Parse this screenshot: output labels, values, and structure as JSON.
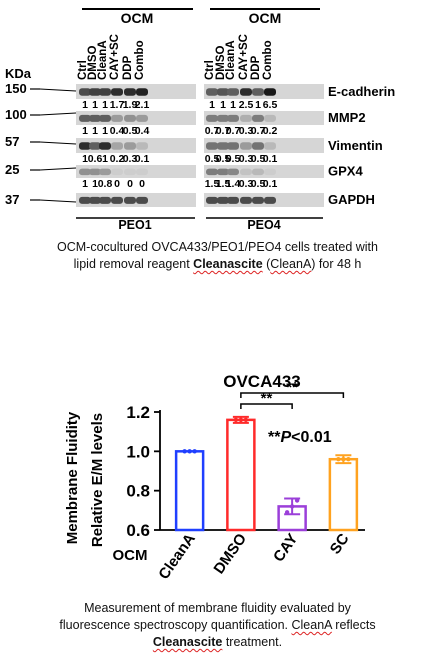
{
  "blot": {
    "group_labels": [
      "OCM",
      "OCM"
    ],
    "lane_labels": [
      "Ctrl",
      "DMSO",
      "CleanA",
      "CAY+SC",
      "DDP",
      "Combo",
      "Ctrl",
      "DMSO",
      "CleanA",
      "CAY+SC",
      "DDP",
      "Combo"
    ],
    "kda_label": "KDa",
    "markers": [
      "150",
      "100",
      "57",
      "25",
      "37"
    ],
    "proteins": [
      "E-cadherin",
      "MMP2",
      "Vimentin",
      "GPX4",
      "GAPDH"
    ],
    "ratios": [
      [
        "1",
        "1",
        "1",
        "1.7",
        "1.9",
        "2.1",
        "1",
        "1",
        "1",
        "2.5",
        "1",
        "6.5"
      ],
      [
        "1",
        "1",
        "1",
        "0.4",
        "0.5",
        "0.4",
        "0.7",
        "0.7",
        "0.7",
        "0.3",
        "0.7",
        "0.2"
      ],
      [
        "1",
        "0.6",
        "1",
        "0.2",
        "0.3",
        "0.1",
        "0.5",
        "0.5",
        "0.5",
        "0.3",
        "0.5",
        "0.1"
      ],
      [
        "1",
        "1",
        "0.8",
        "0",
        "0",
        "0",
        "1.5",
        "1.5",
        "1.4",
        "0.3",
        "0.5",
        "0.1"
      ]
    ],
    "cell_lines": [
      "PEO1",
      "PEO4"
    ]
  },
  "caption1": {
    "line1": "OCM-cocultured OVCA433/PEO1/PEO4  cells treated with",
    "line2_pre": "lipid removal reagent ",
    "line2_bold": "Cleanascite",
    "line2_mid": " (",
    "line2_squig": "CleanA",
    "line2_post": ") for 48 h"
  },
  "chart_data": {
    "type": "bar",
    "title": "OVCA433",
    "ylabel_outer": "Membrane Fluidity",
    "ylabel": "Relative E/M levels",
    "categories": [
      "CleanA",
      "DMSO",
      "CAY",
      "SC"
    ],
    "values": [
      1.0,
      1.16,
      0.72,
      0.96
    ],
    "errors": [
      0.0,
      0.015,
      0.04,
      0.02
    ],
    "colors": [
      "#1f3fff",
      "#ff2a2a",
      "#9b3fd9",
      "#ffa21f"
    ],
    "ylim": [
      0.6,
      1.2
    ],
    "yticks": [
      "0.6",
      "0.8",
      "1.0",
      "1.2"
    ],
    "xlabel_left": "OCM",
    "significance": [
      "**",
      "**"
    ],
    "annotation_stars": "**",
    "annotation_p": "P",
    "annotation_rest": "<0.01"
  },
  "caption2": {
    "line1": "Measurement of membrane fluidity evaluated by",
    "line2_pre": "fluorescence spectroscopy quantification. ",
    "line2_squig": "CleanA",
    "line2_post": " reflects",
    "line3_bold": "Cleanascite",
    "line3_post": " treatment."
  }
}
